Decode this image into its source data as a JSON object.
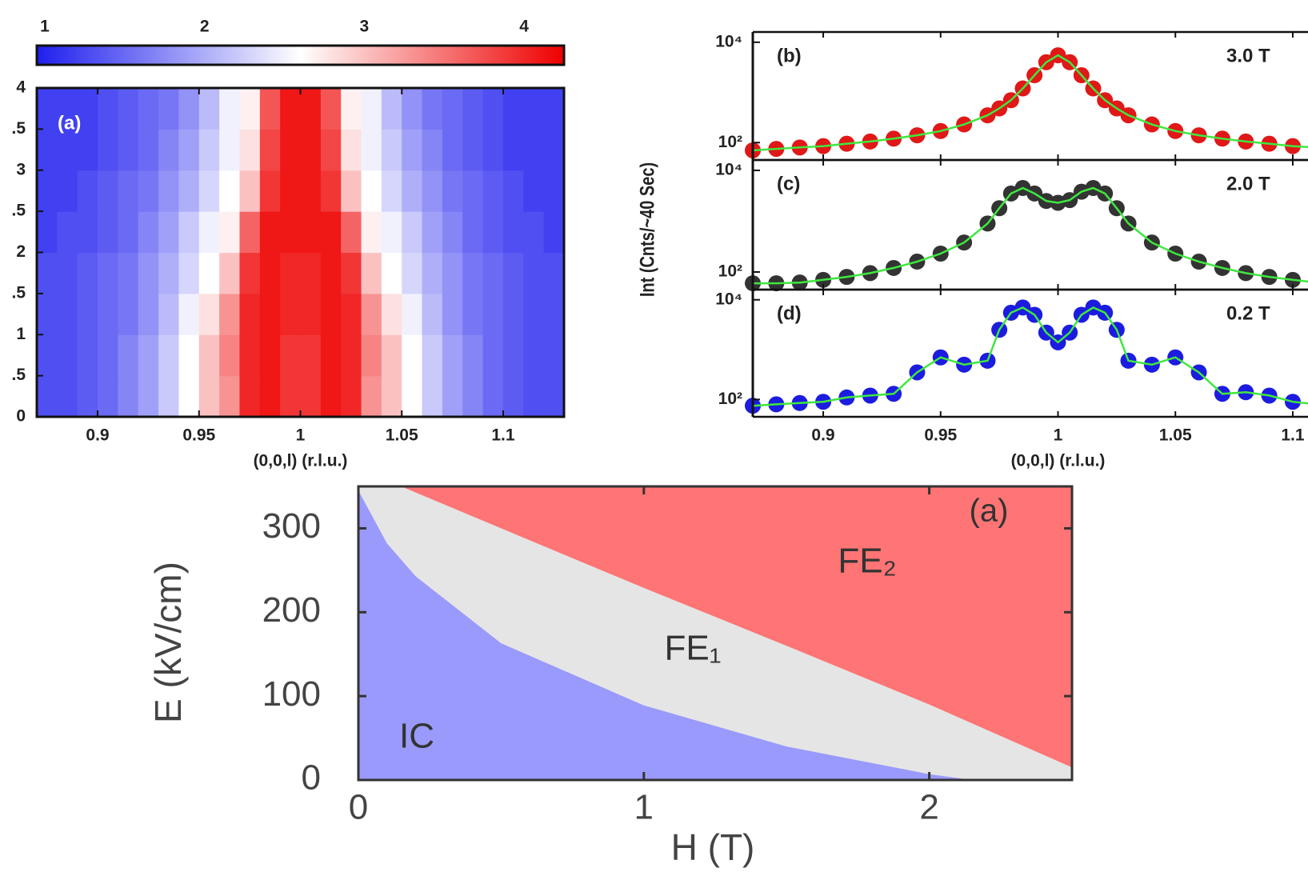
{
  "chart_data": [
    {
      "type": "heatmap",
      "annotation": "(a)",
      "xlabel": "(0,0,l) (r.l.u.)",
      "xlim": [
        0.87,
        1.13
      ],
      "xticks": [
        0.9,
        0.95,
        1,
        1.05,
        1.1
      ],
      "ylim": [
        0,
        4
      ],
      "yticks": [
        0,
        {
          "value": 0.5,
          "label": ".5"
        },
        1,
        {
          "value": 1.5,
          "label": ".5"
        },
        2,
        {
          "value": 2.5,
          "label": ".5"
        },
        3,
        {
          "value": 3.5,
          "label": ".5"
        },
        4
      ],
      "clim": [
        0.95,
        4.25
      ],
      "colorbar_ticks": [
        1,
        2,
        3,
        4
      ],
      "colormap": [
        "#1f1fee",
        "#ffffff",
        "#ee0000"
      ],
      "xbins": [
        0.87,
        0.88,
        0.89,
        0.9,
        0.91,
        0.92,
        0.93,
        0.94,
        0.95,
        0.96,
        0.97,
        0.98,
        0.99,
        1,
        1.01,
        1.02,
        1.03,
        1.04,
        1.05,
        1.06,
        1.07,
        1.08,
        1.09,
        1.1,
        1.11,
        1.12,
        1.13
      ],
      "ybins": [
        0,
        0.5,
        1,
        1.5,
        2,
        2.5,
        3,
        3.5,
        4
      ],
      "z": [
        [
          1.3,
          1.3,
          1.4,
          1.5,
          1.7,
          1.9,
          2.2,
          2.6,
          3.0,
          3.3,
          4.0,
          4.1,
          3.9,
          3.9,
          4.1,
          4.0,
          3.3,
          3.0,
          2.6,
          2.2,
          1.9,
          1.7,
          1.5,
          1.4,
          1.3,
          1.3
        ],
        [
          1.3,
          1.3,
          1.4,
          1.5,
          1.7,
          1.9,
          2.2,
          2.6,
          3.0,
          3.4,
          4.0,
          4.1,
          3.9,
          3.9,
          4.1,
          4.0,
          3.4,
          3.0,
          2.6,
          2.2,
          1.9,
          1.7,
          1.5,
          1.4,
          1.3,
          1.3
        ],
        [
          1.3,
          1.3,
          1.4,
          1.5,
          1.6,
          1.8,
          2.1,
          2.5,
          2.8,
          3.3,
          4.0,
          4.1,
          4.0,
          4.0,
          4.1,
          4.0,
          3.3,
          2.8,
          2.5,
          2.1,
          1.8,
          1.6,
          1.5,
          1.4,
          1.3,
          1.3
        ],
        [
          1.3,
          1.3,
          1.4,
          1.5,
          1.6,
          1.8,
          2.0,
          2.3,
          2.6,
          3.0,
          3.9,
          4.1,
          4.0,
          4.0,
          4.1,
          3.9,
          3.0,
          2.6,
          2.3,
          2.0,
          1.8,
          1.6,
          1.5,
          1.4,
          1.3,
          1.3
        ],
        [
          1.2,
          1.3,
          1.3,
          1.4,
          1.5,
          1.7,
          1.9,
          2.2,
          2.5,
          2.7,
          3.6,
          4.1,
          4.1,
          4.1,
          4.1,
          3.6,
          2.7,
          2.5,
          2.2,
          1.9,
          1.7,
          1.5,
          1.4,
          1.3,
          1.3,
          1.2
        ],
        [
          1.2,
          1.2,
          1.3,
          1.4,
          1.5,
          1.6,
          1.8,
          2.0,
          2.3,
          2.6,
          3.0,
          3.9,
          4.1,
          4.1,
          3.9,
          3.0,
          2.6,
          2.3,
          2.0,
          1.8,
          1.6,
          1.5,
          1.4,
          1.3,
          1.2,
          1.2
        ],
        [
          1.2,
          1.2,
          1.2,
          1.3,
          1.4,
          1.5,
          1.7,
          1.9,
          2.2,
          2.5,
          2.8,
          3.8,
          4.1,
          4.1,
          3.8,
          2.8,
          2.5,
          2.2,
          1.9,
          1.7,
          1.5,
          1.4,
          1.3,
          1.2,
          1.2,
          1.2
        ],
        [
          1.2,
          1.2,
          1.2,
          1.3,
          1.4,
          1.5,
          1.6,
          1.8,
          2.1,
          2.5,
          2.7,
          3.7,
          4.1,
          4.1,
          3.7,
          2.7,
          2.5,
          2.1,
          1.8,
          1.6,
          1.5,
          1.4,
          1.3,
          1.2,
          1.2,
          1.2
        ]
      ]
    },
    {
      "type": "line",
      "annotation": "(b)",
      "field": "3.0 T",
      "log_y": true,
      "line_color": "#3ee83e",
      "xlim": [
        0.87,
        1.13
      ],
      "xticks": [
        0.9,
        0.95,
        1,
        1.05,
        1.1
      ],
      "ylim": [
        45,
        16000
      ],
      "yticks": [
        {
          "value": 100,
          "label": "10²"
        },
        {
          "value": 10000,
          "label": "10⁴"
        }
      ],
      "x": [
        0.87,
        0.88,
        0.89,
        0.9,
        0.91,
        0.92,
        0.93,
        0.94,
        0.95,
        0.96,
        0.97,
        0.975,
        0.98,
        0.985,
        0.99,
        0.995,
        1,
        1.005,
        1.01,
        1.015,
        1.02,
        1.025,
        1.03,
        1.04,
        1.05,
        1.06,
        1.07,
        1.08,
        1.09,
        1.1,
        1.11,
        1.12,
        1.13
      ],
      "series": [
        {
          "color": "#e01818",
          "values": [
            70,
            75,
            80,
            85,
            95,
            105,
            120,
            140,
            170,
            230,
            350,
            480,
            700,
            1200,
            2200,
            4000,
            5500,
            4000,
            2200,
            1200,
            700,
            480,
            350,
            230,
            170,
            140,
            120,
            105,
            95,
            85,
            80,
            75,
            70
          ]
        }
      ]
    },
    {
      "type": "line",
      "annotation": "(c)",
      "field": "2.0 T",
      "log_y": true,
      "line_color": "#3ee83e",
      "ylabel": "Int (Cnts/~40 Sec)",
      "xlim": [
        0.87,
        1.13
      ],
      "xticks": [
        0.9,
        0.95,
        1,
        1.05,
        1.1
      ],
      "ylim": [
        45,
        16000
      ],
      "yticks": [
        {
          "value": 100,
          "label": "10²"
        },
        {
          "value": 10000,
          "label": "10⁴"
        }
      ],
      "x": [
        0.87,
        0.88,
        0.89,
        0.9,
        0.91,
        0.92,
        0.93,
        0.94,
        0.95,
        0.96,
        0.97,
        0.975,
        0.98,
        0.985,
        0.99,
        0.995,
        1,
        1.005,
        1.01,
        1.015,
        1.02,
        1.025,
        1.03,
        1.04,
        1.05,
        1.06,
        1.07,
        1.08,
        1.09,
        1.1,
        1.11,
        1.12,
        1.13
      ],
      "series": [
        {
          "color": "#333333",
          "values": [
            60,
            60,
            62,
            70,
            80,
            95,
            120,
            160,
            230,
            380,
            900,
            1800,
            3500,
            4500,
            3500,
            2500,
            2300,
            2600,
            3800,
            4500,
            3500,
            1800,
            900,
            380,
            230,
            160,
            120,
            95,
            80,
            70,
            62,
            55,
            50
          ]
        }
      ]
    },
    {
      "type": "line",
      "annotation": "(d)",
      "field": "0.2 T",
      "log_y": true,
      "line_color": "#3ee83e",
      "xlabel": "(0,0,l) (r.l.u.)",
      "xlim": [
        0.87,
        1.13
      ],
      "xticks": [
        0.9,
        0.95,
        1,
        1.05,
        1.1
      ],
      "ylim": [
        45,
        16000
      ],
      "yticks": [
        {
          "value": 100,
          "label": "10²"
        },
        {
          "value": 10000,
          "label": "10⁴"
        }
      ],
      "x": [
        0.87,
        0.88,
        0.89,
        0.9,
        0.91,
        0.92,
        0.93,
        0.94,
        0.95,
        0.96,
        0.97,
        0.975,
        0.98,
        0.985,
        0.99,
        0.995,
        1,
        1.005,
        1.01,
        1.015,
        1.02,
        1.025,
        1.03,
        1.04,
        1.05,
        1.06,
        1.07,
        1.08,
        1.09,
        1.1,
        1.11,
        1.12,
        1.13
      ],
      "series": [
        {
          "color": "#1c1ce0",
          "values": [
            75,
            80,
            85,
            90,
            110,
            120,
            130,
            350,
            700,
            500,
            600,
            2500,
            5500,
            7000,
            5000,
            2200,
            1400,
            2200,
            5000,
            7000,
            5500,
            2500,
            600,
            500,
            700,
            350,
            130,
            140,
            120,
            90,
            80,
            75,
            70
          ]
        }
      ]
    },
    {
      "type": "phase",
      "annotation": "(a)",
      "xlabel": "H (T)",
      "ylabel": "E (kV/cm)",
      "xlim": [
        0,
        2.5
      ],
      "xticks": [
        0,
        1,
        2
      ],
      "ylim": [
        0,
        350
      ],
      "yticks": [
        0,
        100,
        200,
        300
      ],
      "series": [
        {
          "name": "IC",
          "color": "#9a9afc",
          "x": [
            0,
            0.1,
            0.2,
            0.5,
            1,
            1.5,
            2,
            2.15
          ],
          "values": [
            345,
            282,
            243,
            163,
            89,
            40,
            7,
            0
          ]
        },
        {
          "name": "FE₁",
          "color": "#e5e5e5",
          "x": [
            0.15,
            0.5,
            1,
            1.5,
            2,
            2.5
          ],
          "values": [
            350,
            300,
            229,
            160,
            90,
            15
          ]
        },
        {
          "name": "FE₂",
          "color": "#ff7474"
        }
      ]
    }
  ]
}
